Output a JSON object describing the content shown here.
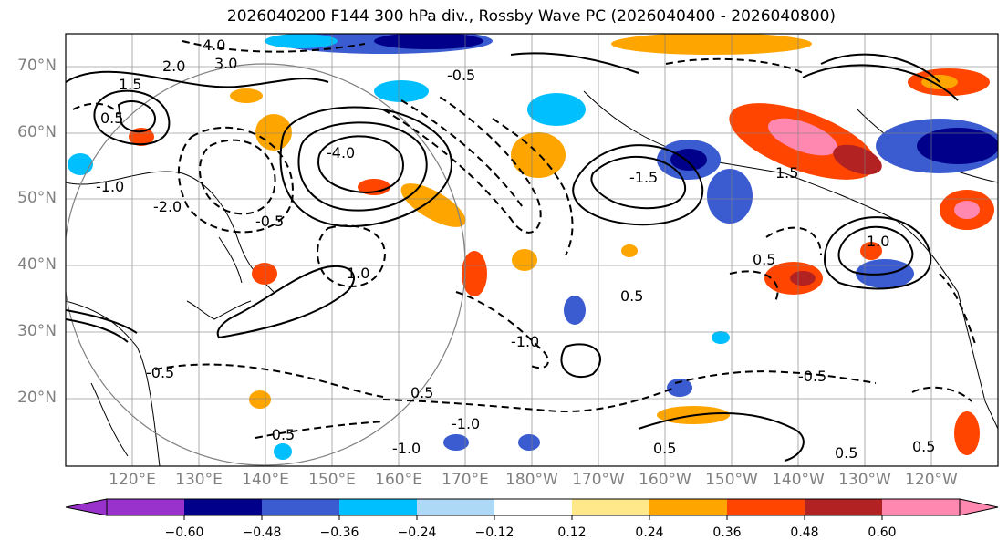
{
  "title": "2026040200 F144 300 hPa div., Rossby Wave PC (2026040400 - 2026040800)",
  "map": {
    "lat_labels": [
      "70°N",
      "60°N",
      "50°N",
      "40°N",
      "30°N",
      "20°N"
    ],
    "lon_labels": [
      "120°E",
      "130°E",
      "140°E",
      "150°E",
      "160°E",
      "170°E",
      "180°W",
      "170°W",
      "160°W",
      "150°W",
      "140°W",
      "130°W",
      "120°W"
    ],
    "contour_labels": [
      "4.0",
      "3.0",
      "2.0",
      "1.5",
      "0.5",
      "-1.0",
      "-2.0",
      "-4.0",
      "-0.5",
      "1.0",
      "-0.5",
      "0.5",
      "-1.5",
      "-1.0",
      "0.5",
      "-0.5",
      "0.5",
      "1.5",
      "-0.5",
      "-1.0",
      "-0.5",
      "1.0",
      "-1.0",
      "0.5",
      "0.5",
      "0.5"
    ]
  },
  "colorbar": {
    "colors": [
      "#9932CC",
      "#00008B",
      "#3B5BD0",
      "#00BFFF",
      "#ADD8F6",
      "#FFFFFF",
      "#FFE88A",
      "#FFA500",
      "#FF4500",
      "#B22222",
      "#FF88B0"
    ],
    "tick_labels": [
      "−0.60",
      "−0.48",
      "−0.36",
      "−0.24",
      "−0.12",
      "0.12",
      "0.24",
      "0.36",
      "0.48",
      "0.60"
    ]
  }
}
